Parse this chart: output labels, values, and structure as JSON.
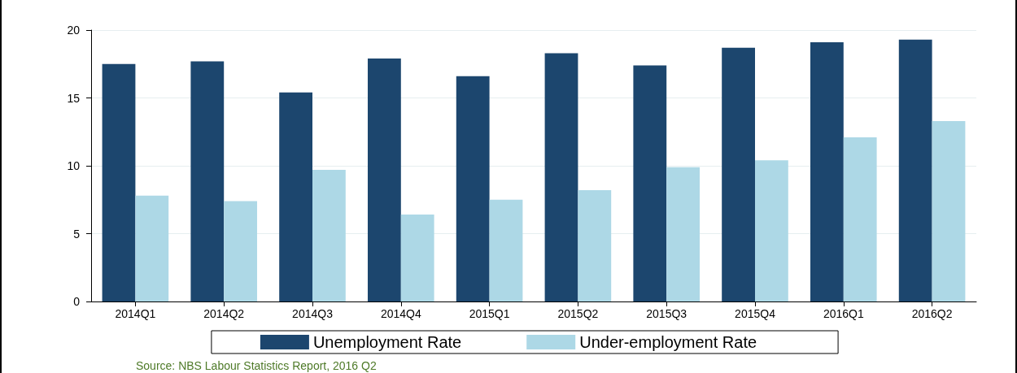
{
  "chart_data": {
    "type": "bar",
    "categories": [
      "2014Q1",
      "2014Q2",
      "2014Q3",
      "2014Q4",
      "2015Q1",
      "2015Q2",
      "2015Q3",
      "2015Q4",
      "2016Q1",
      "2016Q2"
    ],
    "series": [
      {
        "name": "Unemployment Rate",
        "color": "#1c466e",
        "values": [
          17.5,
          17.7,
          15.4,
          17.9,
          16.6,
          18.3,
          17.4,
          18.7,
          19.1,
          19.3
        ]
      },
      {
        "name": "Under-employment Rate",
        "color": "#add8e6",
        "values": [
          7.8,
          7.4,
          9.7,
          6.4,
          7.5,
          8.2,
          9.9,
          10.4,
          12.1,
          13.3
        ]
      }
    ],
    "ylim": [
      0,
      20
    ],
    "yticks": [
      0,
      5,
      10,
      15,
      20
    ],
    "grid": "y",
    "legend": "bottom",
    "annotations": [
      "Source: NBS Labour Statistics Report, 2016 Q2"
    ]
  }
}
